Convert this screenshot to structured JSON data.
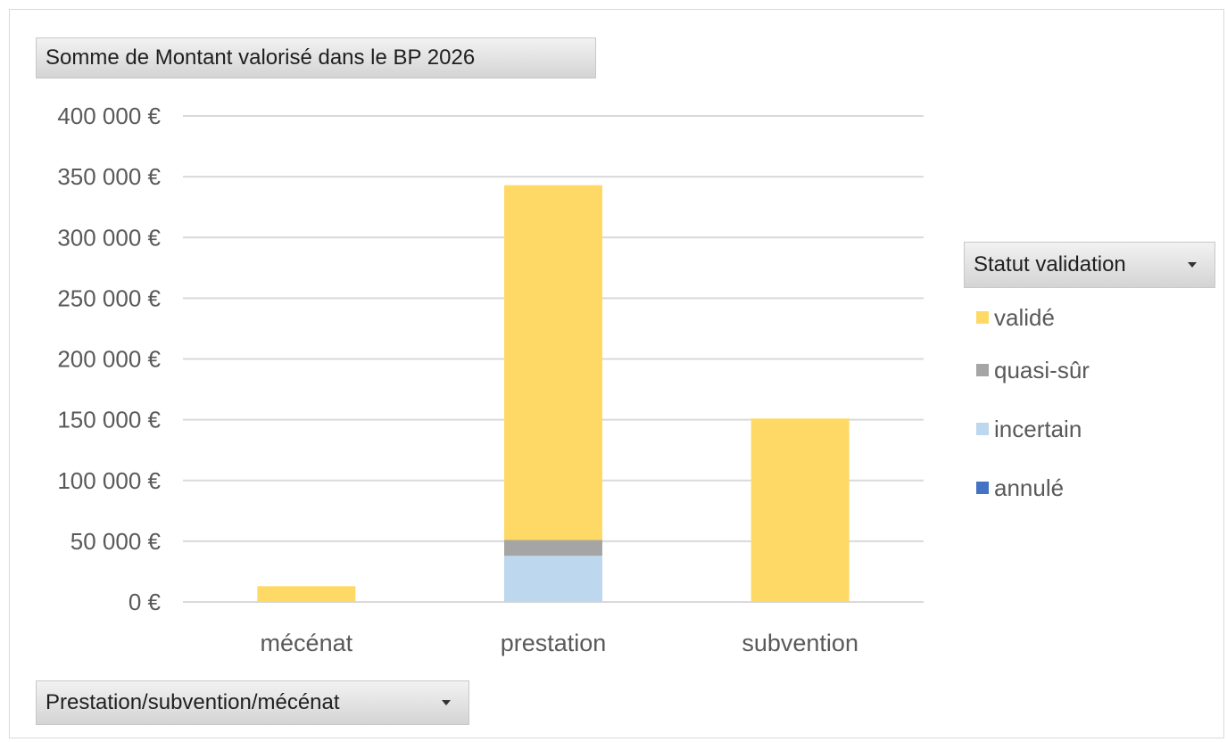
{
  "chart_data": {
    "type": "bar",
    "stacked": true,
    "title": "Somme de Montant valorisé dans le BP 2026",
    "categories": [
      "mécénat",
      "prestation",
      "subvention"
    ],
    "ylim": [
      0,
      400000
    ],
    "yticks": [
      0,
      50000,
      100000,
      150000,
      200000,
      250000,
      300000,
      350000,
      400000
    ],
    "ytick_labels": [
      "0 €",
      "50 000 €",
      "100 000 €",
      "150 000 €",
      "200 000 €",
      "250 000 €",
      "300 000 €",
      "350 000 €",
      "400 000 €"
    ],
    "grid": true,
    "legend_position": "right",
    "legend_title": "Statut validation",
    "series": [
      {
        "name": "annulé",
        "color": "#4472c4",
        "values": [
          0,
          0,
          0
        ]
      },
      {
        "name": "incertain",
        "color": "#bdd7ee",
        "values": [
          0,
          38000,
          0
        ]
      },
      {
        "name": "quasi-sûr",
        "color": "#a5a5a5",
        "values": [
          0,
          13000,
          0
        ]
      },
      {
        "name": "validé",
        "color": "#ffd966",
        "values": [
          13000,
          292000,
          151000
        ]
      }
    ],
    "legend_order": [
      "validé",
      "quasi-sûr",
      "incertain",
      "annulé"
    ]
  },
  "fields": {
    "values_field": "Somme de Montant valorisé dans le BP 2026",
    "legend_field": "Statut validation",
    "axis_field": "Prestation/subvention/mécénat"
  }
}
